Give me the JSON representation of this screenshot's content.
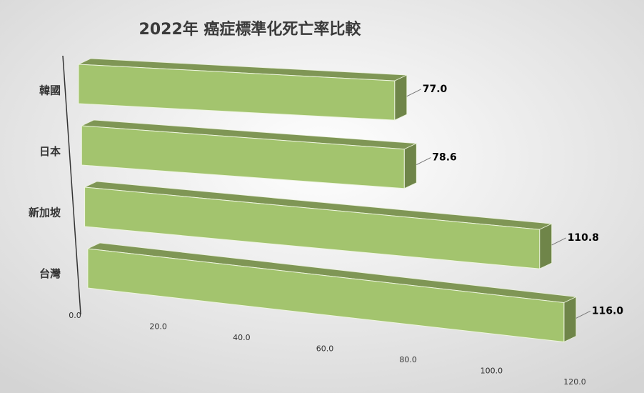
{
  "chart_data": {
    "type": "bar3d",
    "orientation": "horizontal",
    "title": "2022年 癌症標準化死亡率比較",
    "categories": [
      "韓國",
      "日本",
      "新加坡",
      "台灣"
    ],
    "values": [
      77.0,
      78.6,
      110.8,
      116.0
    ],
    "value_labels": [
      "77.0",
      "78.6",
      "110.8",
      "116.0"
    ],
    "color": "#a3c46e",
    "xlim": [
      0,
      120
    ],
    "xticks": [
      {
        "value": 0,
        "label": "0.0"
      },
      {
        "value": 20,
        "label": "20.0"
      },
      {
        "value": 40,
        "label": "40.0"
      },
      {
        "value": 60,
        "label": "60.0"
      },
      {
        "value": 80,
        "label": "80.0"
      },
      {
        "value": 100,
        "label": "100.0"
      },
      {
        "value": 120,
        "label": "120.0"
      }
    ]
  }
}
